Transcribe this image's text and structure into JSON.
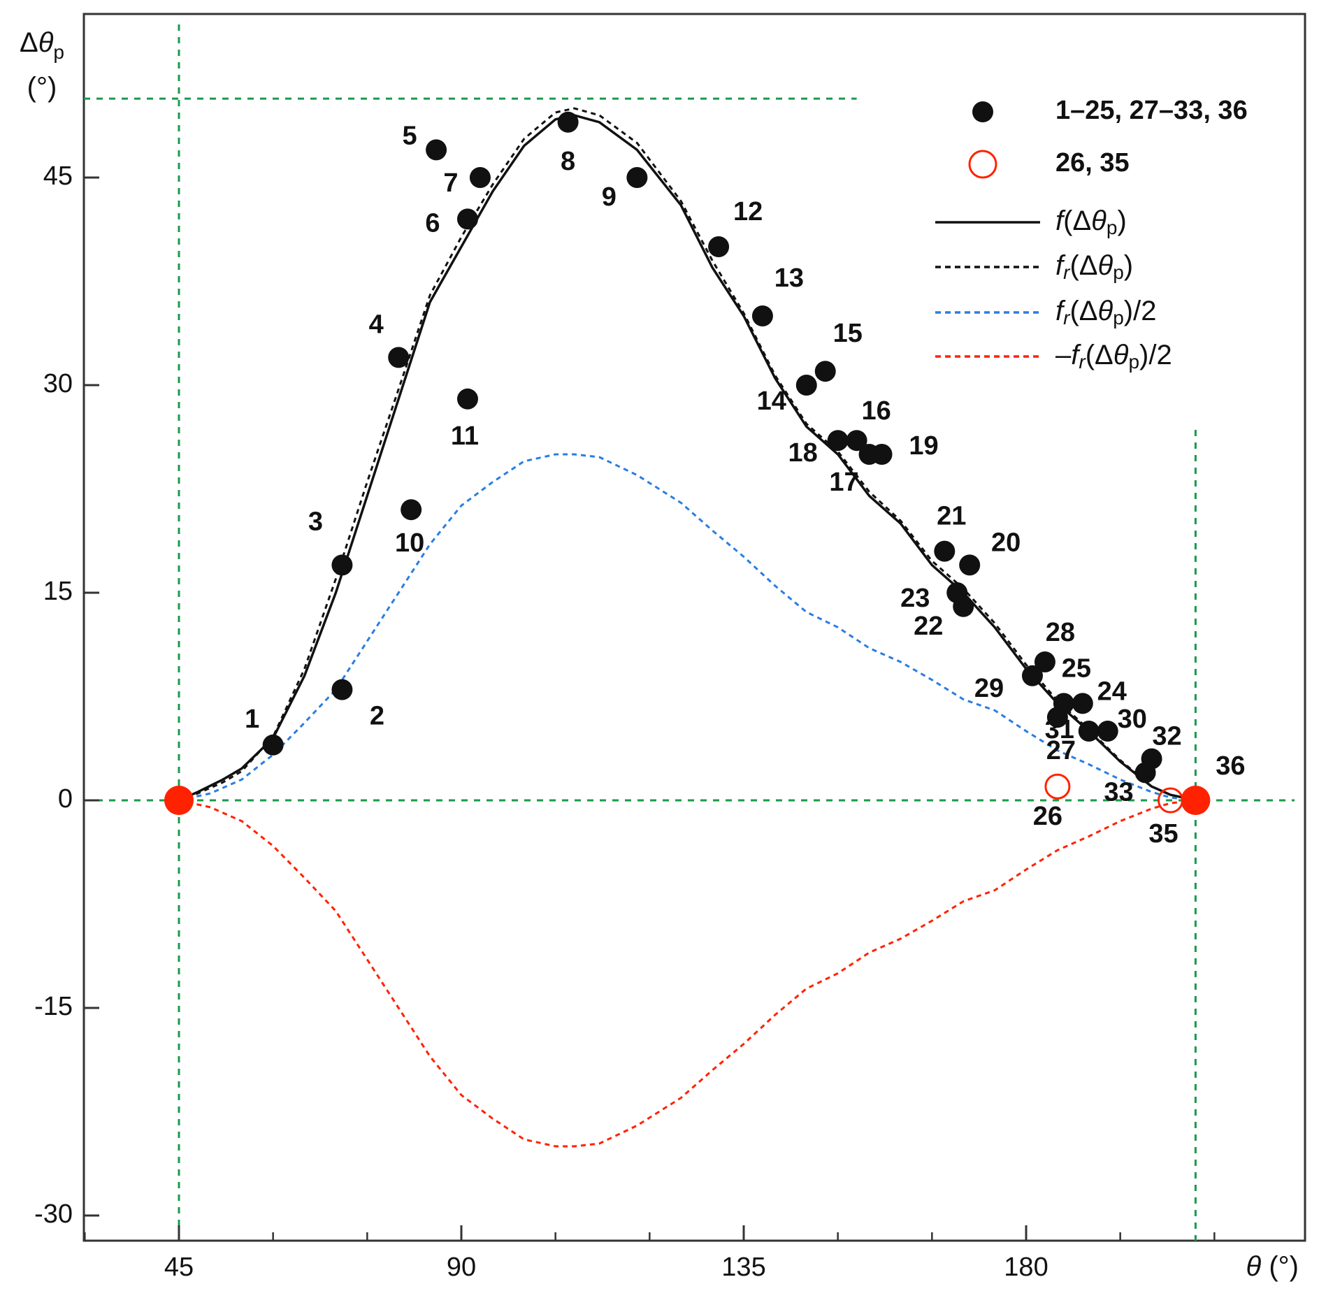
{
  "chart_data": {
    "type": "scatter",
    "x_axis": {
      "label": "θ (°)",
      "label_math": {
        "var": "θ",
        "unit": "(°)"
      },
      "ticks": [
        45,
        90,
        135,
        180
      ],
      "range": [
        30,
        220
      ]
    },
    "y_axis": {
      "label": "Δθp (°)",
      "label_math": {
        "var": "Δθ",
        "sub": "p",
        "unit": "(°)"
      },
      "ticks": [
        45,
        30,
        15,
        0,
        -15,
        -30
      ],
      "range": [
        -32,
        58
      ]
    },
    "colors": {
      "black": "#111111",
      "blue": "#2a7de1",
      "red": "#ff2200",
      "green": "#1a9a4a"
    },
    "reference_lines": {
      "vertical": [
        45,
        207
      ],
      "horizontal": [
        0
      ],
      "top_dash": {
        "y": 50.7,
        "x_end": 153
      }
    },
    "points": [
      {
        "label": "1",
        "x": 60,
        "y": 4,
        "type": "filled"
      },
      {
        "label": "2",
        "x": 71,
        "y": 8,
        "type": "filled"
      },
      {
        "label": "3",
        "x": 71,
        "y": 17,
        "type": "filled"
      },
      {
        "label": "4",
        "x": 80,
        "y": 32,
        "type": "filled"
      },
      {
        "label": "5",
        "x": 86,
        "y": 47,
        "type": "filled"
      },
      {
        "label": "6",
        "x": 91,
        "y": 42,
        "type": "filled"
      },
      {
        "label": "7",
        "x": 93,
        "y": 45,
        "type": "filled"
      },
      {
        "label": "8",
        "x": 107,
        "y": 49,
        "type": "filled"
      },
      {
        "label": "9",
        "x": 118,
        "y": 45,
        "type": "filled"
      },
      {
        "label": "10",
        "x": 82,
        "y": 21,
        "type": "filled"
      },
      {
        "label": "11",
        "x": 91,
        "y": 29,
        "type": "filled"
      },
      {
        "label": "12",
        "x": 131,
        "y": 40,
        "type": "filled"
      },
      {
        "label": "13",
        "x": 138,
        "y": 35,
        "type": "filled"
      },
      {
        "label": "14",
        "x": 145,
        "y": 30,
        "type": "filled"
      },
      {
        "label": "15",
        "x": 148,
        "y": 31,
        "type": "filled"
      },
      {
        "label": "16",
        "x": 153,
        "y": 26,
        "type": "filled"
      },
      {
        "label": "17",
        "x": 155,
        "y": 25,
        "type": "filled"
      },
      {
        "label": "18",
        "x": 150,
        "y": 26,
        "type": "filled"
      },
      {
        "label": "19",
        "x": 157,
        "y": 25,
        "type": "filled"
      },
      {
        "label": "20",
        "x": 171,
        "y": 17,
        "type": "filled"
      },
      {
        "label": "21",
        "x": 167,
        "y": 18,
        "type": "filled"
      },
      {
        "label": "22",
        "x": 170,
        "y": 14,
        "type": "filled"
      },
      {
        "label": "23",
        "x": 169,
        "y": 15,
        "type": "filled"
      },
      {
        "label": "24",
        "x": 189,
        "y": 7,
        "type": "filled"
      },
      {
        "label": "25",
        "x": 186,
        "y": 7,
        "type": "filled"
      },
      {
        "label": "26",
        "x": 185,
        "y": 1,
        "type": "open"
      },
      {
        "label": "27",
        "x": 185,
        "y": 6,
        "type": "filled"
      },
      {
        "label": "28",
        "x": 183,
        "y": 10,
        "type": "filled"
      },
      {
        "label": "29",
        "x": 181,
        "y": 9,
        "type": "filled"
      },
      {
        "label": "30",
        "x": 193,
        "y": 5,
        "type": "filled"
      },
      {
        "label": "31",
        "x": 190,
        "y": 5,
        "type": "filled"
      },
      {
        "label": "32",
        "x": 200,
        "y": 3,
        "type": "filled"
      },
      {
        "label": "33",
        "x": 199,
        "y": 2,
        "type": "filled"
      },
      {
        "label": "35",
        "x": 203,
        "y": 0,
        "type": "open"
      },
      {
        "label": "36",
        "x": 207,
        "y": 0,
        "type": "endpoint"
      },
      {
        "label": "",
        "x": 45,
        "y": 0,
        "type": "endpoint"
      }
    ],
    "series": [
      {
        "name": "f(Δθp)",
        "style": "solid",
        "color": "#111111",
        "x": [
          45,
          48,
          52,
          55,
          60,
          65,
          70,
          75,
          80,
          85,
          90,
          95,
          100,
          105,
          108,
          112,
          118,
          125,
          130,
          135,
          140,
          145,
          150,
          155,
          160,
          165,
          170,
          175,
          180,
          185,
          190,
          195,
          200,
          203,
          207
        ],
        "y": [
          0,
          0.6,
          1.5,
          2.3,
          4.5,
          9,
          15,
          22,
          29,
          36,
          40,
          44,
          47.3,
          49.2,
          49.5,
          49,
          47,
          43,
          38.5,
          35,
          30.5,
          27,
          25,
          22,
          20,
          17,
          15,
          12.5,
          9.5,
          7,
          5,
          2.8,
          1,
          0.4,
          0
        ]
      },
      {
        "name": "fr(Δθp)",
        "style": "dashed",
        "color": "#111111",
        "x": [
          45,
          48,
          52,
          55,
          60,
          65,
          70,
          75,
          80,
          85,
          90,
          95,
          100,
          105,
          108,
          112,
          118,
          125,
          130,
          135,
          140,
          145,
          150,
          155,
          160,
          165,
          170,
          175,
          180,
          185,
          190,
          195,
          200,
          203,
          207
        ],
        "y": [
          0,
          0.5,
          1.3,
          2.1,
          4.6,
          9.5,
          16,
          23,
          29.7,
          36.5,
          40.7,
          44.5,
          47.8,
          49.7,
          50,
          49.5,
          47.5,
          43.3,
          39,
          35.2,
          30.7,
          27.2,
          25.2,
          22.3,
          20.2,
          17.3,
          15.3,
          12.8,
          9.8,
          7.2,
          5.1,
          2.9,
          1,
          0.4,
          0
        ]
      },
      {
        "name": "fr(Δθp)/2",
        "style": "dashed",
        "color": "#2a7de1",
        "x": [
          45,
          50,
          55,
          60,
          65,
          70,
          75,
          80,
          85,
          90,
          95,
          100,
          105,
          108,
          112,
          118,
          125,
          130,
          135,
          140,
          145,
          150,
          155,
          160,
          165,
          170,
          175,
          180,
          185,
          190,
          195,
          200,
          203,
          207
        ],
        "y": [
          0,
          0.5,
          1.5,
          3.3,
          5.6,
          8,
          11.5,
          15,
          18.5,
          21.3,
          23,
          24.5,
          25,
          25,
          24.8,
          23.5,
          21.5,
          19.5,
          17.6,
          15.5,
          13.6,
          12.5,
          11,
          10,
          8.7,
          7.3,
          6.5,
          5,
          3.6,
          2.6,
          1.5,
          0.6,
          0.2,
          0
        ]
      },
      {
        "name": "−fr(Δθp)/2",
        "style": "dashed",
        "color": "#ff2200",
        "x": [
          45,
          50,
          55,
          60,
          65,
          70,
          75,
          80,
          85,
          90,
          95,
          100,
          105,
          108,
          112,
          118,
          125,
          130,
          135,
          140,
          145,
          150,
          155,
          160,
          165,
          170,
          175,
          180,
          185,
          190,
          195,
          200,
          203,
          207
        ],
        "y": [
          0,
          -0.5,
          -1.5,
          -3.3,
          -5.6,
          -8,
          -11.5,
          -15,
          -18.5,
          -21.3,
          -23,
          -24.5,
          -25,
          -25,
          -24.8,
          -23.5,
          -21.5,
          -19.5,
          -17.6,
          -15.5,
          -13.6,
          -12.5,
          -11,
          -10,
          -8.7,
          -7.3,
          -6.5,
          -5,
          -3.6,
          -2.6,
          -1.5,
          -0.6,
          -0.2,
          0
        ]
      }
    ],
    "legend": {
      "position": "top-right",
      "entries": [
        {
          "marker": "filled",
          "text": "1–25, 27–33, 36"
        },
        {
          "marker": "open",
          "text": "26, 35"
        },
        {
          "marker": "solid-line",
          "text": "f(Δθp)",
          "math": {
            "pre": "",
            "fn": "f",
            "sub_fn": "",
            "post": "(Δθ",
            "sub": "p",
            "tail": ")"
          }
        },
        {
          "marker": "dash-black",
          "text": "fr(Δθp)",
          "math": {
            "pre": "",
            "fn": "f",
            "sub_fn": "r",
            "post": "(Δθ",
            "sub": "p",
            "tail": ")"
          }
        },
        {
          "marker": "dash-blue",
          "text": "fr(Δθp)/2",
          "math": {
            "pre": "",
            "fn": "f",
            "sub_fn": "r",
            "post": "(Δθ",
            "sub": "p",
            "tail": ")/2"
          }
        },
        {
          "marker": "dash-red",
          "text": "–fr(Δθp)/2",
          "math": {
            "pre": "–",
            "fn": "f",
            "sub_fn": "r",
            "post": "(Δθ",
            "sub": "p",
            "tail": ")/2"
          }
        }
      ]
    }
  }
}
